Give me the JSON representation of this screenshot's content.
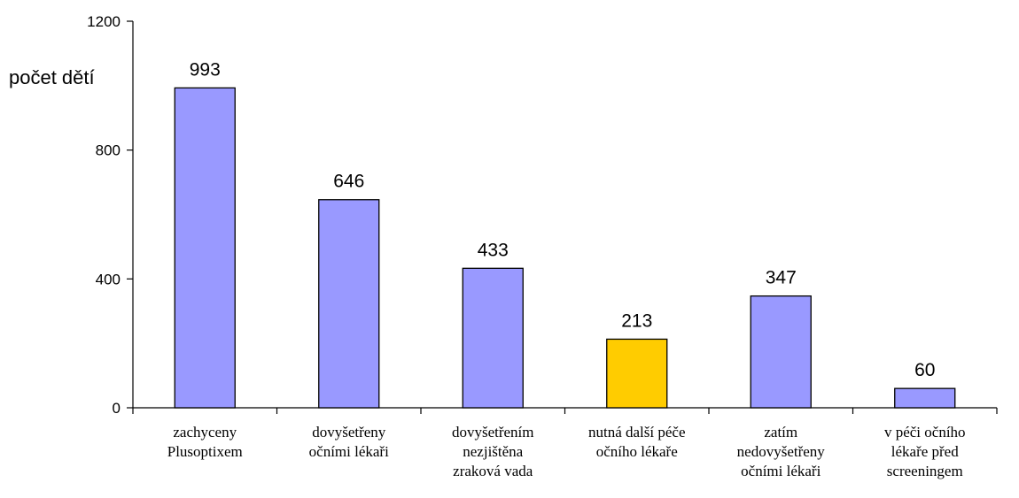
{
  "chart_data": {
    "type": "bar",
    "ylabel": "počet dětí",
    "ylim": [
      0,
      1200
    ],
    "yticks": [
      0,
      400,
      800,
      1200
    ],
    "categories": [
      [
        "zachyceny",
        "Plusoptixem"
      ],
      [
        "dovyšetřeny",
        "očními lékaři"
      ],
      [
        "dovyšetřením",
        "nezjištěna",
        "zraková vada"
      ],
      [
        "nutná další péče",
        "očního lékaře"
      ],
      [
        "zatím",
        "nedovyšetřeny",
        "očními lékaři"
      ],
      [
        "v péči očního",
        "lékaře před",
        "screeningem"
      ]
    ],
    "values": [
      993,
      646,
      433,
      213,
      347,
      60
    ],
    "colors": [
      "#9999ff",
      "#9999ff",
      "#9999ff",
      "#ffcc00",
      "#9999ff",
      "#9999ff"
    ],
    "grid": false,
    "legend": "none"
  }
}
